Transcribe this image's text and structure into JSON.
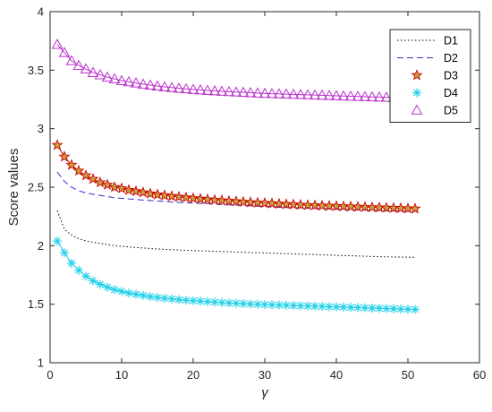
{
  "chart_data": {
    "type": "line",
    "title": "",
    "xlabel": "γ",
    "ylabel": "Score values",
    "xlim": [
      0,
      60
    ],
    "ylim": [
      1,
      4
    ],
    "xticks": [
      0,
      10,
      20,
      30,
      40,
      50,
      60
    ],
    "yticks": [
      1,
      1.5,
      2,
      2.5,
      3,
      3.5,
      4
    ],
    "xtick_labels": [
      "0",
      "10",
      "20",
      "30",
      "40",
      "50",
      "60"
    ],
    "ytick_labels": [
      "1",
      "1.5",
      "2",
      "2.5",
      "3",
      "3.5",
      "4"
    ],
    "grid": false,
    "legend_position": "top-right",
    "x": [
      1,
      2,
      3,
      4,
      5,
      6,
      7,
      8,
      9,
      10,
      11,
      12,
      13,
      14,
      15,
      16,
      17,
      18,
      19,
      20,
      21,
      22,
      23,
      24,
      25,
      26,
      27,
      28,
      29,
      30,
      31,
      32,
      33,
      34,
      35,
      36,
      37,
      38,
      39,
      40,
      41,
      42,
      43,
      44,
      45,
      46,
      47,
      48,
      49,
      50,
      51
    ],
    "series": [
      {
        "name": "D1",
        "color": "#000000",
        "style": "dotted",
        "marker": "none",
        "values": [
          2.3,
          2.14,
          2.09,
          2.06,
          2.04,
          2.03,
          2.02,
          2.01,
          2.0,
          1.995,
          1.99,
          1.985,
          1.98,
          1.976,
          1.972,
          1.969,
          1.966,
          1.963,
          1.961,
          1.958,
          1.956,
          1.954,
          1.952,
          1.95,
          1.948,
          1.946,
          1.944,
          1.942,
          1.94,
          1.938,
          1.936,
          1.934,
          1.932,
          1.93,
          1.928,
          1.926,
          1.924,
          1.922,
          1.92,
          1.918,
          1.916,
          1.914,
          1.912,
          1.91,
          1.908,
          1.906,
          1.905,
          1.904,
          1.903,
          1.902,
          1.9
        ]
      },
      {
        "name": "D2",
        "color": "#3333cc",
        "style": "dashed",
        "marker": "none",
        "values": [
          2.63,
          2.55,
          2.5,
          2.47,
          2.45,
          2.44,
          2.43,
          2.42,
          2.41,
          2.405,
          2.4,
          2.395,
          2.39,
          2.386,
          2.382,
          2.378,
          2.374,
          2.37,
          2.367,
          2.364,
          2.361,
          2.358,
          2.355,
          2.352,
          2.349,
          2.346,
          2.343,
          2.34,
          2.337,
          2.334,
          2.331,
          2.328,
          2.326,
          2.324,
          2.322,
          2.32,
          2.318,
          2.316,
          2.314,
          2.312,
          2.31,
          2.308,
          2.306,
          2.304,
          2.302,
          2.3,
          2.298,
          2.296,
          2.295,
          2.294,
          2.293
        ]
      },
      {
        "name": "D3",
        "color": "#cc0000",
        "style": "solid",
        "marker": "star",
        "values": [
          2.86,
          2.76,
          2.69,
          2.64,
          2.6,
          2.57,
          2.54,
          2.52,
          2.5,
          2.49,
          2.475,
          2.465,
          2.455,
          2.445,
          2.437,
          2.43,
          2.423,
          2.417,
          2.411,
          2.405,
          2.4,
          2.395,
          2.39,
          2.386,
          2.382,
          2.378,
          2.374,
          2.37,
          2.367,
          2.364,
          2.361,
          2.358,
          2.355,
          2.352,
          2.349,
          2.346,
          2.344,
          2.342,
          2.34,
          2.338,
          2.336,
          2.334,
          2.332,
          2.33,
          2.328,
          2.326,
          2.324,
          2.322,
          2.32,
          2.318,
          2.316
        ]
      },
      {
        "name": "D4",
        "color": "#22d0e8",
        "style": "solid",
        "marker": "asterisk",
        "values": [
          2.04,
          1.94,
          1.85,
          1.79,
          1.74,
          1.7,
          1.67,
          1.645,
          1.625,
          1.61,
          1.595,
          1.585,
          1.575,
          1.565,
          1.558,
          1.551,
          1.545,
          1.539,
          1.534,
          1.53,
          1.526,
          1.522,
          1.518,
          1.514,
          1.511,
          1.508,
          1.505,
          1.502,
          1.499,
          1.497,
          1.495,
          1.493,
          1.491,
          1.489,
          1.487,
          1.485,
          1.483,
          1.481,
          1.479,
          1.477,
          1.475,
          1.473,
          1.471,
          1.469,
          1.467,
          1.465,
          1.463,
          1.461,
          1.459,
          1.457,
          1.455
        ]
      },
      {
        "name": "D5",
        "color": "#bb33cc",
        "style": "solid",
        "marker": "triangle",
        "values": [
          3.72,
          3.65,
          3.58,
          3.54,
          3.51,
          3.48,
          3.46,
          3.44,
          3.425,
          3.41,
          3.4,
          3.39,
          3.38,
          3.372,
          3.364,
          3.357,
          3.351,
          3.345,
          3.34,
          3.335,
          3.331,
          3.327,
          3.323,
          3.319,
          3.316,
          3.313,
          3.31,
          3.307,
          3.304,
          3.301,
          3.299,
          3.297,
          3.295,
          3.293,
          3.291,
          3.289,
          3.287,
          3.285,
          3.283,
          3.281,
          3.279,
          3.277,
          3.275,
          3.273,
          3.271,
          3.269,
          3.267,
          3.265,
          3.264,
          3.263,
          3.262
        ]
      }
    ]
  }
}
